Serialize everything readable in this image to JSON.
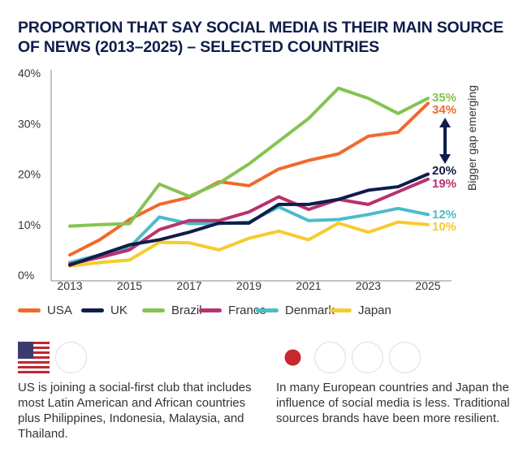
{
  "chart_data": {
    "type": "line",
    "title": "PROPORTION THAT SAY SOCIAL MEDIA IS THEIR MAIN SOURCE OF NEWS (2013–2025) – SELECTED COUNTRIES",
    "xlabel": "",
    "ylabel": "",
    "ylim": [
      0,
      40
    ],
    "yticks": [
      "0%",
      "10%",
      "20%",
      "30%",
      "40%"
    ],
    "ytick_values": [
      0,
      10,
      20,
      30,
      40
    ],
    "x": [
      2013,
      2014,
      2015,
      2016,
      2017,
      2018,
      2019,
      2020,
      2021,
      2022,
      2023,
      2024,
      2025
    ],
    "xtick_labels": [
      "2013",
      "2015",
      "2017",
      "2019",
      "2021",
      "2023",
      "2025"
    ],
    "xtick_values": [
      2013,
      2015,
      2017,
      2019,
      2021,
      2023,
      2025
    ],
    "grid": false,
    "legend_position": "bottom",
    "series": [
      {
        "name": "USA",
        "color": "#ef6a2d",
        "values": [
          4,
          7,
          11,
          14,
          15.4,
          18.5,
          17.7,
          21,
          22.7,
          24,
          27.5,
          28.3,
          34
        ],
        "end_label": "34%"
      },
      {
        "name": "UK",
        "color": "#0f1d4a",
        "values": [
          2,
          4,
          6,
          7,
          8.5,
          10.3,
          10.3,
          14,
          14,
          15,
          16.8,
          17.5,
          20
        ],
        "end_label": "20%"
      },
      {
        "name": "Brazil",
        "color": "#84c450",
        "values": [
          9.7,
          10,
          10.2,
          18,
          15.6,
          18.2,
          22,
          26.5,
          31,
          37,
          35,
          32,
          35
        ],
        "end_label": "35%"
      },
      {
        "name": "France",
        "color": "#b8326f",
        "values": [
          2.2,
          3.5,
          5,
          9,
          10.8,
          10.8,
          12.5,
          15.5,
          13,
          15,
          14,
          16.5,
          19
        ],
        "end_label": "19%"
      },
      {
        "name": "Denmark",
        "color": "#4bbcc8",
        "values": [
          2.5,
          4,
          5.5,
          11.5,
          10.2,
          10.2,
          10.5,
          13.5,
          10.8,
          11,
          12,
          13.2,
          12
        ],
        "end_label": "12%"
      },
      {
        "name": "Japan",
        "color": "#f6cb2e",
        "values": [
          1.8,
          2.5,
          3,
          6.5,
          6.4,
          5,
          7.3,
          8.7,
          7,
          10.3,
          8.5,
          10.5,
          10
        ],
        "end_label": "10%"
      }
    ],
    "annotations": [
      "Bigger gap emerging"
    ]
  },
  "notes": {
    "left": "US is joining a social-first club that includes most Latin American and African countries plus Philippines, Indonesia, Malaysia, and Thailand.",
    "right": "In many European countries and Japan the influence of social media is less. Traditional sources brands have been more resilient."
  },
  "flags": {
    "left": [
      "brazil-flag-icon",
      "usa-flag-icon"
    ],
    "right": [
      "uk-flag-icon",
      "france-flag-icon",
      "denmark-flag-icon",
      "japan-flag-icon"
    ]
  }
}
